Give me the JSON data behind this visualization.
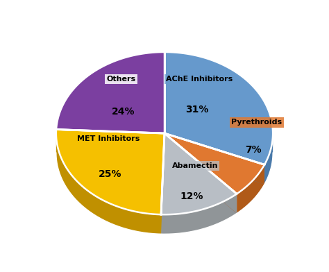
{
  "labels": [
    "AChE Inhibitors",
    "Pyrethroids",
    "Abamectin",
    "MET Inhibitors",
    "Others"
  ],
  "values": [
    31,
    7,
    12,
    25,
    24
  ],
  "colors": [
    "#6699CC",
    "#E07830",
    "#B8BEC5",
    "#F5C000",
    "#7B3FA0"
  ],
  "shadow_colors": [
    "#4A7AAA",
    "#B05A18",
    "#909598",
    "#C09000",
    "#5A2580"
  ],
  "pct_labels": [
    "31%",
    "7%",
    "12%",
    "25%",
    "24%"
  ],
  "startangle": 90,
  "figsize": [
    4.74,
    3.92
  ],
  "dpi": 100
}
